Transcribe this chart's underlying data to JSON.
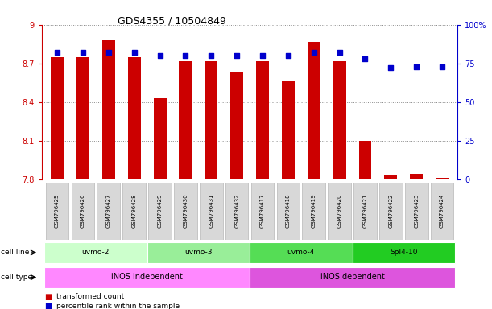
{
  "title": "GDS4355 / 10504849",
  "samples": [
    "GSM796425",
    "GSM796426",
    "GSM796427",
    "GSM796428",
    "GSM796429",
    "GSM796430",
    "GSM796431",
    "GSM796432",
    "GSM796417",
    "GSM796418",
    "GSM796419",
    "GSM796420",
    "GSM796421",
    "GSM796422",
    "GSM796423",
    "GSM796424"
  ],
  "transformed_count": [
    8.75,
    8.75,
    8.88,
    8.75,
    8.43,
    8.72,
    8.72,
    8.63,
    8.72,
    8.56,
    8.87,
    8.72,
    8.1,
    7.83,
    7.84,
    7.81
  ],
  "percentile_rank": [
    82,
    82,
    82,
    82,
    80,
    80,
    80,
    80,
    80,
    80,
    82,
    82,
    78,
    72,
    73,
    73
  ],
  "ylim_left": [
    7.8,
    9.0
  ],
  "ylim_right": [
    0,
    100
  ],
  "yticks_left": [
    7.8,
    8.1,
    8.4,
    8.7,
    9.0
  ],
  "yticks_right": [
    0,
    25,
    50,
    75,
    100
  ],
  "ytick_labels_left": [
    "7.8",
    "8.1",
    "8.4",
    "8.7",
    "9"
  ],
  "ytick_labels_right": [
    "0",
    "25",
    "50",
    "75",
    "100%"
  ],
  "bar_color": "#cc0000",
  "dot_color": "#0000cc",
  "bar_bottom": 7.8,
  "cell_lines": [
    {
      "label": "uvmo-2",
      "start": 0,
      "end": 3,
      "color": "#ccffcc"
    },
    {
      "label": "uvmo-3",
      "start": 4,
      "end": 7,
      "color": "#99ee99"
    },
    {
      "label": "uvmo-4",
      "start": 8,
      "end": 11,
      "color": "#55dd55"
    },
    {
      "label": "Spl4-10",
      "start": 12,
      "end": 15,
      "color": "#22cc22"
    }
  ],
  "cell_types": [
    {
      "label": "iNOS independent",
      "start": 0,
      "end": 7,
      "color": "#ff88ff"
    },
    {
      "label": "iNOS dependent",
      "start": 8,
      "end": 15,
      "color": "#dd55dd"
    }
  ],
  "cell_line_label": "cell line",
  "cell_type_label": "cell type",
  "legend_bar_label": "transformed count",
  "legend_dot_label": "percentile rank within the sample",
  "grid_color": "#888888",
  "axis_left_color": "#cc0000",
  "axis_right_color": "#0000cc",
  "bg_color": "#ffffff",
  "plot_bg_color": "#ffffff"
}
